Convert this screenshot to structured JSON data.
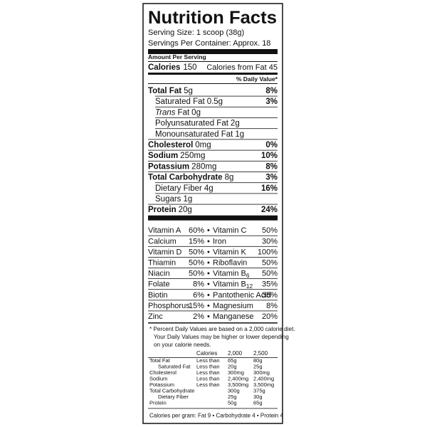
{
  "title": "Nutrition Facts",
  "serving_size": "Serving Size: 1 scoop (38g)",
  "servings_per_container": "Servings Per Container: Approx. 18",
  "amount_per_serving": "Amount Per Serving",
  "calories": {
    "label": "Calories",
    "value": "150"
  },
  "calories_from_fat": "Calories from Fat 45",
  "daily_value_header": "% Daily Value*",
  "nutrients": [
    {
      "label": "Total Fat",
      "amount": "5g",
      "dv": "8%",
      "bold": true,
      "indent": 0
    },
    {
      "label": "Saturated Fat",
      "amount": "0.5g",
      "dv": "3%",
      "bold": false,
      "indent": 1
    },
    {
      "italic_prefix": "Trans",
      "label": "Fat",
      "amount": "0g",
      "bold": false,
      "indent": 1
    },
    {
      "label": "Polyunsaturated Fat",
      "amount": "2g",
      "bold": false,
      "indent": 1
    },
    {
      "label": "Monounsaturated Fat",
      "amount": "1g",
      "bold": false,
      "indent": 1
    },
    {
      "label": "Cholesterol",
      "amount": "0mg",
      "dv": "0%",
      "bold": true,
      "indent": 0
    },
    {
      "label": "Sodium",
      "amount": "250mg",
      "dv": "10%",
      "bold": true,
      "indent": 0
    },
    {
      "label": "Potassium",
      "amount": "280mg",
      "dv": "8%",
      "bold": true,
      "indent": 0
    },
    {
      "label": "Total Carbohydrate",
      "amount": "8g",
      "dv": "3%",
      "bold": true,
      "indent": 0
    },
    {
      "label": "Dietary Fiber",
      "amount": "4g",
      "dv": "16%",
      "bold": false,
      "indent": 1
    },
    {
      "label": "Sugars",
      "amount": "1g",
      "bold": false,
      "indent": 1
    },
    {
      "label": "Protein",
      "amount": "20g",
      "dv": "24%",
      "bold": true,
      "indent": 0
    }
  ],
  "separator": "•",
  "vitamins": [
    [
      {
        "name": "Vitamin A",
        "dv": "60%"
      },
      {
        "name": "Vitamin C",
        "dv": "50%"
      }
    ],
    [
      {
        "name": "Calcium",
        "dv": "15%"
      },
      {
        "name": "Iron",
        "dv": "30%"
      }
    ],
    [
      {
        "name": "Vitamin D",
        "dv": "50%"
      },
      {
        "name": "Vitamin K",
        "dv": "100%"
      }
    ],
    [
      {
        "name": "Thiamin",
        "dv": "50%"
      },
      {
        "name": "Riboflavin",
        "dv": "50%"
      }
    ],
    [
      {
        "name": "Niacin",
        "dv": "50%"
      },
      {
        "name": "Vitamin B",
        "sub": "6",
        "dv": "50%"
      }
    ],
    [
      {
        "name": "Folate",
        "dv": "8%"
      },
      {
        "name": "Vitamin B",
        "sub": "12",
        "dv": "35%"
      }
    ],
    [
      {
        "name": "Biotin",
        "dv": "6%"
      },
      {
        "name": "Pantothenic Acid",
        "dv": "35%"
      }
    ],
    [
      {
        "name": "Phosphorus",
        "dv": "15%"
      },
      {
        "name": "Magnesium",
        "dv": "8%"
      }
    ],
    [
      {
        "name": "Zinc",
        "dv": "2%"
      },
      {
        "name": "Manganese",
        "dv": "20%"
      }
    ]
  ],
  "footnote": [
    "* Percent Daily Values are based on a 2,000 calorie diet.",
    "Your Daily Values may be higher or lower depending",
    "on your calorie needs."
  ],
  "dv_table": {
    "header": {
      "label": "Calories",
      "cols": [
        "2,000",
        "2,500"
      ]
    },
    "rows": [
      {
        "label": "Total Fat",
        "qual": "Less than",
        "cols": [
          "65g",
          "80g"
        ],
        "indent": 0
      },
      {
        "label": "Saturated Fat",
        "qual": "Less than",
        "cols": [
          "20g",
          "25g"
        ],
        "indent": 1
      },
      {
        "label": "Cholesterol",
        "qual": "Less than",
        "cols": [
          "300mg",
          "300mg"
        ],
        "indent": 0
      },
      {
        "label": "Sodium",
        "qual": "Less than",
        "cols": [
          "2,400mg",
          "2,400mg"
        ],
        "indent": 0
      },
      {
        "label": "Potassium",
        "qual": "Less than",
        "cols": [
          "3,500mg",
          "3,500mg"
        ],
        "indent": 0
      },
      {
        "label": "Total Carbohydrate",
        "cols": [
          "300g",
          "375g"
        ],
        "indent": 0
      },
      {
        "label": "Dietary Fiber",
        "cols": [
          "25g",
          "30g"
        ],
        "indent": 1
      },
      {
        "label": "Protein",
        "cols": [
          "50g",
          "65g"
        ],
        "indent": 0
      }
    ]
  },
  "calories_per_gram": "Calories per gram: Fat 9 • Carbohydrate 4 • Protein 4"
}
